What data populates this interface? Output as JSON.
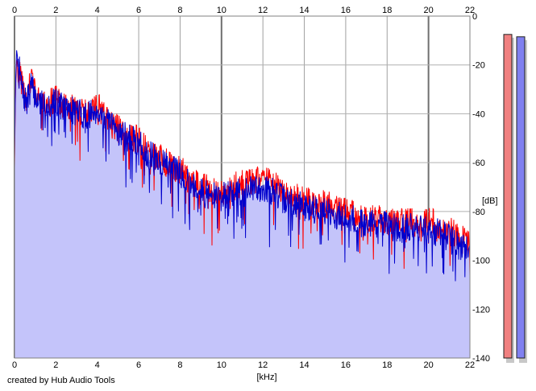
{
  "chart_data": {
    "type": "area",
    "title": "",
    "xlabel": "[kHz]",
    "ylabel": "[dB]",
    "xlim": [
      0,
      22
    ],
    "ylim": [
      -140,
      0
    ],
    "x_ticks": [
      0,
      2,
      4,
      6,
      8,
      10,
      12,
      14,
      16,
      18,
      20,
      22
    ],
    "y_ticks": [
      0,
      -20,
      -40,
      -60,
      -80,
      -100,
      -120,
      -140
    ],
    "grid": true,
    "series": [
      {
        "color": "#ff0000",
        "points": [
          [
            0.0,
            -62
          ],
          [
            0.05,
            -30
          ],
          [
            0.1,
            -18
          ],
          [
            0.2,
            -22
          ],
          [
            0.4,
            -30
          ],
          [
            0.6,
            -34
          ],
          [
            0.8,
            -26
          ],
          [
            1.0,
            -32
          ],
          [
            1.2,
            -33
          ],
          [
            1.5,
            -35
          ],
          [
            2.0,
            -34
          ],
          [
            2.5,
            -37
          ],
          [
            3.0,
            -38
          ],
          [
            3.5,
            -40
          ],
          [
            4.0,
            -37
          ],
          [
            4.5,
            -43
          ],
          [
            5.0,
            -46
          ],
          [
            5.5,
            -49
          ],
          [
            6.0,
            -51
          ],
          [
            6.5,
            -56
          ],
          [
            7.0,
            -58
          ],
          [
            7.5,
            -61
          ],
          [
            8.0,
            -63
          ],
          [
            8.5,
            -66
          ],
          [
            9.0,
            -70
          ],
          [
            9.5,
            -71
          ],
          [
            10.0,
            -72
          ],
          [
            10.5,
            -70
          ],
          [
            11.0,
            -69
          ],
          [
            11.5,
            -68
          ],
          [
            12.0,
            -67
          ],
          [
            12.5,
            -68
          ],
          [
            13.0,
            -72
          ],
          [
            13.5,
            -74
          ],
          [
            14.0,
            -76
          ],
          [
            14.5,
            -76
          ],
          [
            15.0,
            -77
          ],
          [
            15.5,
            -79
          ],
          [
            16.0,
            -80
          ],
          [
            16.5,
            -82
          ],
          [
            17.0,
            -83
          ],
          [
            17.5,
            -83
          ],
          [
            18.0,
            -84
          ],
          [
            18.5,
            -85
          ],
          [
            19.0,
            -84
          ],
          [
            19.5,
            -85
          ],
          [
            20.0,
            -84
          ],
          [
            20.5,
            -86
          ],
          [
            21.0,
            -88
          ],
          [
            21.5,
            -91
          ],
          [
            22.0,
            -93
          ]
        ]
      },
      {
        "color": "#0000cc",
        "fill_color": "#c4c4fa",
        "points": [
          [
            0.0,
            -58
          ],
          [
            0.05,
            -28
          ],
          [
            0.1,
            -14
          ],
          [
            0.2,
            -20
          ],
          [
            0.4,
            -32
          ],
          [
            0.6,
            -36
          ],
          [
            0.8,
            -28
          ],
          [
            1.0,
            -33
          ],
          [
            1.2,
            -35
          ],
          [
            1.5,
            -36
          ],
          [
            2.0,
            -35
          ],
          [
            2.5,
            -38
          ],
          [
            3.0,
            -39
          ],
          [
            3.5,
            -41
          ],
          [
            4.0,
            -38
          ],
          [
            4.5,
            -44
          ],
          [
            5.0,
            -47
          ],
          [
            5.5,
            -50
          ],
          [
            6.0,
            -52
          ],
          [
            6.5,
            -57
          ],
          [
            7.0,
            -59
          ],
          [
            7.5,
            -62
          ],
          [
            8.0,
            -64
          ],
          [
            8.5,
            -68
          ],
          [
            9.0,
            -72
          ],
          [
            9.5,
            -74
          ],
          [
            10.0,
            -74
          ],
          [
            10.5,
            -73
          ],
          [
            11.0,
            -72
          ],
          [
            11.5,
            -71
          ],
          [
            12.0,
            -70
          ],
          [
            12.5,
            -72
          ],
          [
            13.0,
            -75
          ],
          [
            13.5,
            -77
          ],
          [
            14.0,
            -78
          ],
          [
            14.5,
            -79
          ],
          [
            15.0,
            -80
          ],
          [
            15.5,
            -82
          ],
          [
            16.0,
            -82
          ],
          [
            16.5,
            -84
          ],
          [
            17.0,
            -85
          ],
          [
            17.5,
            -85
          ],
          [
            18.0,
            -86
          ],
          [
            18.5,
            -87
          ],
          [
            19.0,
            -86
          ],
          [
            19.5,
            -87
          ],
          [
            20.0,
            -87
          ],
          [
            20.5,
            -89
          ],
          [
            21.0,
            -91
          ],
          [
            21.5,
            -94
          ],
          [
            22.0,
            -96
          ]
        ]
      }
    ],
    "level_meters": [
      {
        "color": "#f08080",
        "level_db": -3
      },
      {
        "color": "#8080f0",
        "level_db": -4
      }
    ]
  },
  "credit": "created by Hub Audio Tools"
}
